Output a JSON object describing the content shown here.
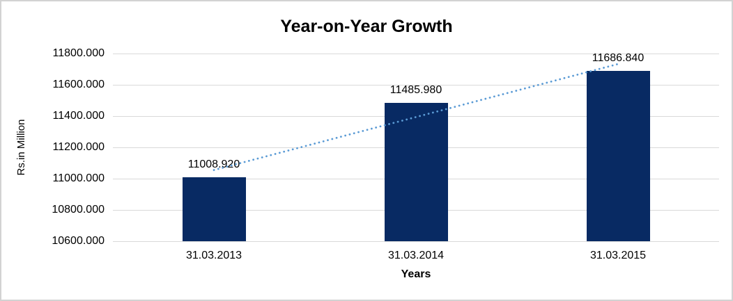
{
  "chart_data": {
    "type": "bar",
    "title": "Year-on-Year Growth",
    "xlabel": "Years",
    "ylabel": "Rs.in Million",
    "categories": [
      "31.03.2013",
      "31.03.2014",
      "31.03.2015"
    ],
    "values": [
      11008.92,
      11485.98,
      11686.84
    ],
    "data_labels": [
      "11008.920",
      "11485.980",
      "11686.840"
    ],
    "ylim": [
      10600,
      11800
    ],
    "ytick_values": [
      10600,
      10800,
      11000,
      11200,
      11400,
      11600,
      11800
    ],
    "ytick_labels": [
      "10600.000",
      "10800.000",
      "11000.000",
      "11200.000",
      "11400.000",
      "11600.000",
      "11800.000"
    ],
    "grid": true,
    "legend_position": "none",
    "trendline": {
      "type": "linear",
      "style": "dotted"
    },
    "colors": {
      "bar": "#082a63",
      "trendline": "#5b9bd5",
      "gridline": "#d9d9d9",
      "text": "#000000",
      "frame_border": "#d2d2d2",
      "background": "#ffffff"
    }
  }
}
